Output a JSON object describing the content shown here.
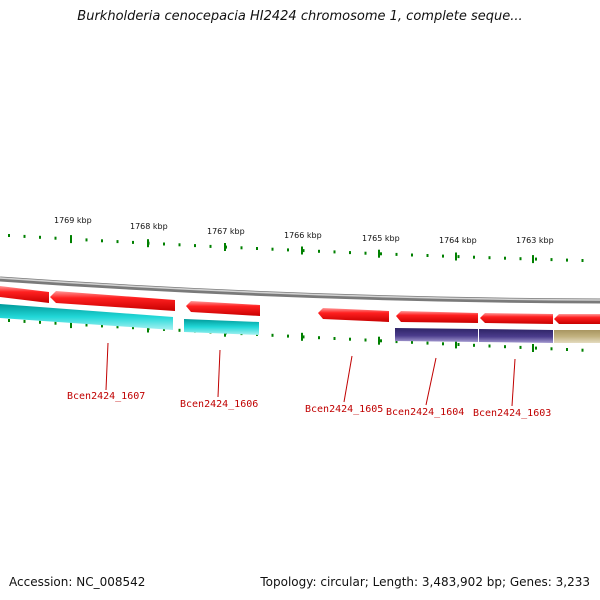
{
  "title": "Burkholderia cenocepacia HI2424 chromosome 1, complete seque...",
  "footer": {
    "accession": "Accession: NC_008542",
    "summary": "Topology: circular; Length: 3,483,902 bp; Genes: 3,233"
  },
  "ruler": {
    "labels": [
      "1769 kbp",
      "1768 kbp",
      "1767 kbp",
      "1766 kbp",
      "1765 kbp",
      "1764 kbp",
      "1763 kbp"
    ],
    "tick_color": "#008000"
  },
  "genes": [
    {
      "name": "Bcen2424_1607"
    },
    {
      "name": "Bcen2424_1606"
    },
    {
      "name": "Bcen2424_1605"
    },
    {
      "name": "Bcen2424_1604"
    },
    {
      "name": "Bcen2424_1603"
    }
  ],
  "colors": {
    "cds_arrow": "#ff0000",
    "cog_cyan": "#00cccc",
    "cog_purple": "#4b3c8c",
    "cog_khaki": "#c2b280",
    "backbone": "#888888",
    "label": "#c00000"
  }
}
